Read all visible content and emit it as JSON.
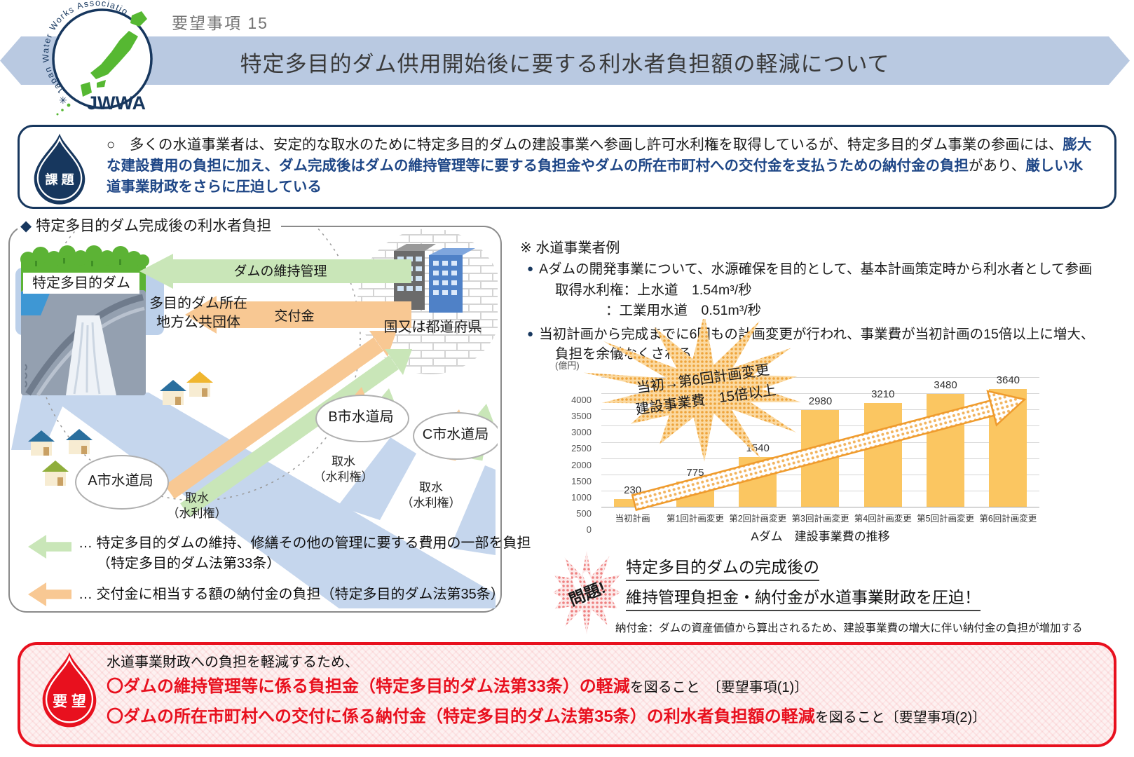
{
  "header": {
    "doc_label": "要望事項  15",
    "title": "特定多目的ダム供用開始後に要する利水者負担額の軽減について",
    "logo": {
      "ring_text": "Japan Water Works Association",
      "acronym": "JWWA",
      "mark": "✳"
    }
  },
  "issue": {
    "badge": "課 題",
    "segments": [
      {
        "text": "○　多くの水道事業者は、安定的な取水のために特定多目的ダムの建設事業へ参画し許可水利権を取得しているが、特定多目的ダム事業の参画には、"
      },
      {
        "text": "膨大な建設費用の負担に加え、ダム完成後はダムの維持管理等に要する負担金やダムの所在市町村への交付金を支払うための納付金の負担"
      },
      {
        "text": "があり、"
      },
      {
        "text": "厳しい水道事業財政をさらに圧迫している"
      }
    ]
  },
  "diagram": {
    "heading_bullet": "◆",
    "heading": "特定多目的ダム完成後の利水者負担",
    "dam_label": "特定多目的ダム",
    "municipality_line1": "多目的ダム所在",
    "municipality_line2": "地方公共団体",
    "maintenance_arrow_label": "ダムの維持管理",
    "grant_arrow_label": "交付金",
    "state_label": "国又は都道府県",
    "bureau_a": "A市水道局",
    "bureau_b": "B市水道局",
    "bureau_c": "C市水道局",
    "intake_line1": "取水",
    "intake_line2": "（水利権）",
    "legend_green_line1": "…  特定多目的ダムの維持、修繕その他の管理に要する費用の一部を負担",
    "legend_green_line2": "（特定多目的ダム法第33条）",
    "legend_orange": "…  交付金に相当する額の納付金の負担（特定多目的ダム法第35条）"
  },
  "example": {
    "heading": "※ 水道事業者例",
    "bullet1_line1": "Aダムの開発事業について、水源確保を目的として、基本計画策定時から利水者として参画",
    "bullet1_line2": "取得水利権：上水道　1.54m³/秒",
    "bullet1_line3": "：工業用水道　0.51m³/秒",
    "bullet2_line1": "当初計画から完成までに6回もの計画変更が行われ、事業費が当初計画の15倍以上に増大、",
    "bullet2_line2": "負担を余儀なくされる"
  },
  "chart_data": {
    "type": "bar",
    "title": "Aダム　建設事業費の推移",
    "unit_label": "(億円)",
    "categories": [
      "当初計画",
      "第1回計画変更",
      "第2回計画変更",
      "第3回計画変更",
      "第4回計画変更",
      "第5回計画変更",
      "第6回計画変更"
    ],
    "values": [
      230,
      775,
      1540,
      2980,
      3210,
      3480,
      3640
    ],
    "ylim": [
      0,
      4000
    ],
    "ytick_step": 500,
    "grid": true,
    "bar_color": "#fbc661",
    "burst_line1": "当初→第6回計画変更",
    "burst_line2": "建設事業費　15倍以上"
  },
  "problem": {
    "badge": "問題!",
    "line1": "特定多目的ダムの完成後の",
    "line2": "維持管理負担金・納付金が水道事業財政を圧迫！",
    "note": "納付金：ダムの資産価値から算出されるため、建設事業費の増大に伴い納付金の負担が増加する"
  },
  "request": {
    "badge": "要 望",
    "intro": "水道事業財政への負担を軽減するため、",
    "item1_em": "〇ダムの維持管理等に係る負担金（特定多目的ダム法第33条）の軽減",
    "item1_rest": "を図ること　〔要望事項(1)〕",
    "item2_em": "〇ダムの所在市町村への交付に係る納付金（特定多目的ダム法第35条）の利水者負担額の軽減",
    "item2_rest": "を図ること〔要望事項(2)〕"
  },
  "colors": {
    "banner_blue": "#b9c9e1",
    "navy": "#17375e",
    "em_blue": "#1e4686",
    "green_arrow": "#c9e6b8",
    "orange_arrow": "#f8c893",
    "river_blue": "#c5d6ed",
    "bar_orange": "#fbc661",
    "red": "#e8101e"
  }
}
